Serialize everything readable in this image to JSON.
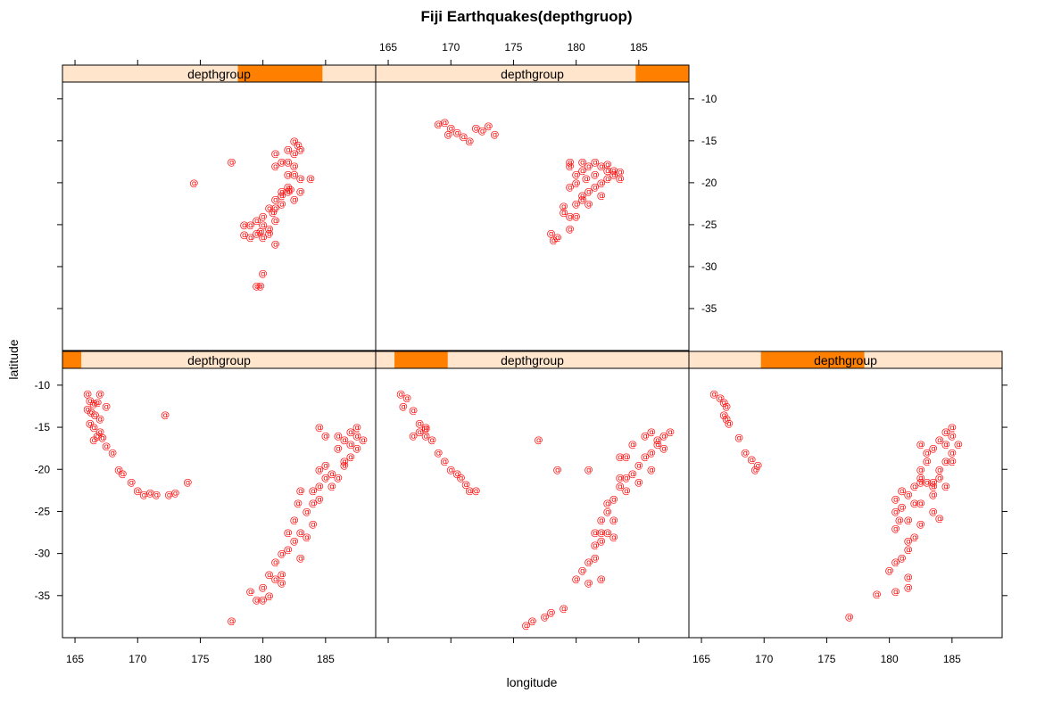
{
  "chart_data": {
    "type": "scatter",
    "title": "Fiji Earthquakes(depthgruop)",
    "xlabel": "longitude",
    "ylabel": "latitude",
    "xlim": [
      164,
      189
    ],
    "ylim": [
      -40,
      -8
    ],
    "xticks": [
      165,
      170,
      175,
      180,
      185
    ],
    "yticks": [
      -10,
      -15,
      -20,
      -25,
      -30,
      -35
    ],
    "point_symbol": "@",
    "point_color": "#ff0000",
    "strip_bg_color": "#ffe5cc",
    "strip_level_color": "#ff7f00",
    "layout": "3 columns x 2 rows, panels 1-3 bottom row left to right, panels 4-5 top row left to right",
    "panels": [
      {
        "strip_label": "depthgroup",
        "level_range": [
          0,
          0.06
        ],
        "points": [
          [
            166,
            -11
          ],
          [
            166.2,
            -11.8
          ],
          [
            166.5,
            -12.2
          ],
          [
            166,
            -12.8
          ],
          [
            166.3,
            -13.2
          ],
          [
            166.6,
            -13.5
          ],
          [
            167,
            -14
          ],
          [
            166.2,
            -14.5
          ],
          [
            166.5,
            -15
          ],
          [
            167,
            -15.5
          ],
          [
            166.8,
            -16
          ],
          [
            166.5,
            -16.5
          ],
          [
            167.2,
            -16.2
          ],
          [
            167.5,
            -17.2
          ],
          [
            168,
            -18
          ],
          [
            167,
            -11
          ],
          [
            167.5,
            -12.5
          ],
          [
            166.8,
            -12
          ],
          [
            168.5,
            -20
          ],
          [
            168.8,
            -20.5
          ],
          [
            169.5,
            -21.5
          ],
          [
            170,
            -22.5
          ],
          [
            170.5,
            -23
          ],
          [
            171,
            -22.8
          ],
          [
            171.5,
            -23
          ],
          [
            172.5,
            -23
          ],
          [
            173,
            -22.8
          ],
          [
            174,
            -21.5
          ],
          [
            172.2,
            -13.5
          ],
          [
            177.5,
            -38
          ],
          [
            179,
            -34.5
          ],
          [
            179.5,
            -35.5
          ],
          [
            180,
            -34
          ],
          [
            180.5,
            -35
          ],
          [
            181,
            -33
          ],
          [
            181.5,
            -32.5
          ],
          [
            181,
            -31
          ],
          [
            181.5,
            -30
          ],
          [
            182,
            -29.5
          ],
          [
            182.5,
            -28.5
          ],
          [
            182,
            -27.5
          ],
          [
            182.5,
            -26
          ],
          [
            183,
            -27.5
          ],
          [
            183.5,
            -28
          ],
          [
            184,
            -26.5
          ],
          [
            183.5,
            -25
          ],
          [
            184,
            -24
          ],
          [
            184.5,
            -23.5
          ],
          [
            184,
            -22.5
          ],
          [
            184.5,
            -22
          ],
          [
            185,
            -21
          ],
          [
            185.5,
            -20.5
          ],
          [
            185.5,
            -22
          ],
          [
            186,
            -21
          ],
          [
            186.5,
            -19.5
          ],
          [
            187,
            -18.5
          ],
          [
            187.5,
            -17.5
          ],
          [
            186,
            -16
          ],
          [
            186.5,
            -16.5
          ],
          [
            187,
            -15.5
          ],
          [
            187.5,
            -16
          ],
          [
            188,
            -16.5
          ],
          [
            185,
            -16
          ],
          [
            186,
            -17.5
          ],
          [
            187,
            -17
          ],
          [
            187.5,
            -15
          ],
          [
            184.5,
            -15
          ],
          [
            186.5,
            -19
          ],
          [
            185,
            -19.5
          ],
          [
            184.5,
            -20
          ],
          [
            183,
            -22.5
          ],
          [
            182.8,
            -24
          ],
          [
            183,
            -30.5
          ],
          [
            181.5,
            -33.5
          ],
          [
            180.5,
            -32.5
          ],
          [
            180,
            -35.5
          ]
        ]
      },
      {
        "strip_label": "depthgroup",
        "level_range": [
          0.06,
          0.23
        ],
        "points": [
          [
            166,
            -11
          ],
          [
            166.5,
            -11.5
          ],
          [
            166.2,
            -12.5
          ],
          [
            167,
            -13
          ],
          [
            167.5,
            -14.5
          ],
          [
            168,
            -15
          ],
          [
            167.5,
            -15.5
          ],
          [
            168,
            -16
          ],
          [
            168.5,
            -16.5
          ],
          [
            167,
            -16
          ],
          [
            168,
            -15.2
          ],
          [
            169,
            -18
          ],
          [
            169.5,
            -19
          ],
          [
            170,
            -20
          ],
          [
            170.5,
            -20.5
          ],
          [
            170.8,
            -21
          ],
          [
            171.2,
            -21.8
          ],
          [
            171.5,
            -22.5
          ],
          [
            172,
            -22.5
          ],
          [
            177,
            -16.5
          ],
          [
            178.5,
            -20
          ],
          [
            179,
            -36.5
          ],
          [
            178,
            -37
          ],
          [
            177.5,
            -37.5
          ],
          [
            176.5,
            -38
          ],
          [
            176,
            -38.5
          ],
          [
            180.5,
            -32
          ],
          [
            181,
            -31
          ],
          [
            181.5,
            -30.5
          ],
          [
            181.5,
            -29
          ],
          [
            182,
            -27.5
          ],
          [
            182,
            -26
          ],
          [
            182.5,
            -25
          ],
          [
            182.5,
            -24
          ],
          [
            183,
            -23.5
          ],
          [
            183.5,
            -22
          ],
          [
            184,
            -21
          ],
          [
            184.5,
            -20.5
          ],
          [
            185,
            -19.5
          ],
          [
            185.5,
            -18.5
          ],
          [
            186,
            -18
          ],
          [
            186.5,
            -17
          ],
          [
            187,
            -16
          ],
          [
            187.5,
            -15.5
          ],
          [
            186,
            -15.5
          ],
          [
            185.5,
            -16
          ],
          [
            184.5,
            -17
          ],
          [
            184,
            -18.5
          ],
          [
            183.5,
            -18.5
          ],
          [
            183.5,
            -21
          ],
          [
            184,
            -22.5
          ],
          [
            185,
            -21.5
          ],
          [
            186,
            -20
          ],
          [
            187,
            -17.5
          ],
          [
            186.5,
            -16.5
          ],
          [
            183,
            -26
          ],
          [
            182.5,
            -27.5
          ],
          [
            183,
            -28
          ],
          [
            182,
            -28.5
          ],
          [
            181.5,
            -27.5
          ],
          [
            182,
            -33
          ],
          [
            181,
            -33.5
          ],
          [
            180,
            -33
          ],
          [
            181,
            -20
          ]
        ]
      },
      {
        "strip_label": "depthgroup",
        "level_range": [
          0.23,
          0.56
        ],
        "points": [
          [
            166,
            -11
          ],
          [
            166.5,
            -11.5
          ],
          [
            166.8,
            -12
          ],
          [
            167,
            -12.5
          ],
          [
            166.8,
            -13.5
          ],
          [
            167,
            -14
          ],
          [
            167.2,
            -14.5
          ],
          [
            168,
            -16.2
          ],
          [
            168.5,
            -18
          ],
          [
            169,
            -18.8
          ],
          [
            169.5,
            -19.5
          ],
          [
            169.3,
            -20
          ],
          [
            176.8,
            -37.5
          ],
          [
            179,
            -34.8
          ],
          [
            180,
            -32
          ],
          [
            180.5,
            -31
          ],
          [
            181,
            -30.5
          ],
          [
            181.5,
            -29.5
          ],
          [
            181.5,
            -28.5
          ],
          [
            182,
            -28
          ],
          [
            180.5,
            -34.5
          ],
          [
            181.5,
            -34
          ],
          [
            181.5,
            -32.8
          ],
          [
            180.5,
            -27
          ],
          [
            180.8,
            -26
          ],
          [
            180.5,
            -25
          ],
          [
            181,
            -24.5
          ],
          [
            180.5,
            -23.5
          ],
          [
            181.5,
            -23
          ],
          [
            182,
            -22
          ],
          [
            181.5,
            -26
          ],
          [
            182,
            -24
          ],
          [
            182.5,
            -21
          ],
          [
            182.5,
            -20
          ],
          [
            183,
            -19
          ],
          [
            183,
            -18
          ],
          [
            182.5,
            -17
          ],
          [
            183.5,
            -17.5
          ],
          [
            184,
            -16.5
          ],
          [
            184.5,
            -15.5
          ],
          [
            185,
            -15
          ],
          [
            185,
            -16
          ],
          [
            185.5,
            -17
          ],
          [
            185,
            -18
          ],
          [
            184.5,
            -19
          ],
          [
            184,
            -20
          ],
          [
            183.5,
            -21.5
          ],
          [
            184,
            -21
          ],
          [
            183,
            -21.5
          ],
          [
            183.5,
            -22
          ],
          [
            182.5,
            -21.5
          ],
          [
            184.5,
            -22
          ],
          [
            183.5,
            -23
          ],
          [
            182.5,
            -24
          ],
          [
            183.5,
            -25
          ],
          [
            184,
            -25.8
          ],
          [
            182.5,
            -26.5
          ],
          [
            181,
            -22.5
          ],
          [
            185,
            -19
          ],
          [
            184.5,
            -17
          ]
        ]
      },
      {
        "strip_label": "depthgroup",
        "level_range": [
          0.56,
          0.83
        ],
        "points": [
          [
            177.5,
            -17.5
          ],
          [
            174.5,
            -20
          ],
          [
            181,
            -16.5
          ],
          [
            181.5,
            -17.5
          ],
          [
            182,
            -17.5
          ],
          [
            182.5,
            -18
          ],
          [
            182,
            -16
          ],
          [
            182.5,
            -15
          ],
          [
            182.8,
            -15.5
          ],
          [
            182.5,
            -19
          ],
          [
            183,
            -19.5
          ],
          [
            182,
            -20.5
          ],
          [
            181.5,
            -21.5
          ],
          [
            181,
            -22
          ],
          [
            180.5,
            -23
          ],
          [
            180,
            -24
          ],
          [
            180,
            -25
          ],
          [
            179.5,
            -26
          ],
          [
            179,
            -25
          ],
          [
            178.5,
            -25
          ],
          [
            178.5,
            -26.2
          ],
          [
            180.5,
            -26
          ],
          [
            179.5,
            -24.5
          ],
          [
            179,
            -26.5
          ],
          [
            180,
            -26.5
          ],
          [
            181,
            -27.3
          ],
          [
            180,
            -30.8
          ],
          [
            179.5,
            -32.3
          ],
          [
            179.8,
            -32.3
          ],
          [
            181,
            -24.5
          ],
          [
            181,
            -23
          ],
          [
            181.5,
            -21
          ],
          [
            182,
            -21
          ],
          [
            183,
            -21
          ],
          [
            183.8,
            -19.5
          ],
          [
            182.5,
            -16.5
          ],
          [
            183,
            -16
          ],
          [
            181,
            -18
          ],
          [
            182,
            -19
          ],
          [
            182.5,
            -22
          ],
          [
            180.8,
            -23.5
          ],
          [
            181.5,
            -22.5
          ],
          [
            180.5,
            -25.5
          ],
          [
            179.8,
            -25.8
          ],
          [
            182.2,
            -20.8
          ]
        ]
      },
      {
        "strip_label": "depthgroup",
        "level_range": [
          0.83,
          1.0
        ],
        "points": [
          [
            169,
            -13
          ],
          [
            169.5,
            -12.8
          ],
          [
            170,
            -13.5
          ],
          [
            170.5,
            -14
          ],
          [
            171,
            -14.5
          ],
          [
            171.5,
            -15
          ],
          [
            172,
            -13.5
          ],
          [
            172.5,
            -13.8
          ],
          [
            173,
            -13.2
          ],
          [
            173.5,
            -14.2
          ],
          [
            169.8,
            -14.2
          ],
          [
            178,
            -26
          ],
          [
            178.5,
            -26.5
          ],
          [
            178.2,
            -26.8
          ],
          [
            179.5,
            -25.5
          ],
          [
            179,
            -23.5
          ],
          [
            179.5,
            -24
          ],
          [
            180,
            -24
          ],
          [
            180,
            -22.5
          ],
          [
            180.5,
            -22
          ],
          [
            181,
            -21
          ],
          [
            181.5,
            -20.5
          ],
          [
            182,
            -20
          ],
          [
            182.5,
            -19.5
          ],
          [
            183,
            -19
          ],
          [
            183.5,
            -19.5
          ],
          [
            182.5,
            -18.5
          ],
          [
            182,
            -18
          ],
          [
            181.5,
            -17.5
          ],
          [
            181,
            -18
          ],
          [
            180.5,
            -18.5
          ],
          [
            180,
            -19
          ],
          [
            180,
            -20
          ],
          [
            179.5,
            -20.5
          ],
          [
            179.5,
            -18
          ],
          [
            179.5,
            -17.5
          ],
          [
            180.5,
            -17.5
          ],
          [
            182.5,
            -17.8
          ],
          [
            183,
            -18.5
          ],
          [
            181,
            -22.5
          ],
          [
            180.5,
            -21.5
          ],
          [
            181.5,
            -19
          ],
          [
            183.5,
            -18.7
          ],
          [
            180.8,
            -19.5
          ],
          [
            182,
            -21.5
          ],
          [
            179,
            -22.8
          ]
        ]
      }
    ]
  }
}
